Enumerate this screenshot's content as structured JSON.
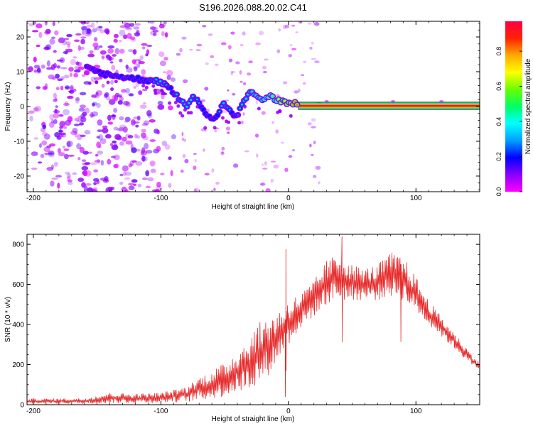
{
  "title": "S196.2026.088.20.02.C41",
  "colors": {
    "snr_line": "#e62a2a",
    "axis": "#000000",
    "colorbar_stops": [
      "#ff00ff",
      "#8800ff",
      "#0000ff",
      "#00a0ff",
      "#00ffff",
      "#00ff66",
      "#66ff00",
      "#ffff00",
      "#ffaa00",
      "#ff2200",
      "#ff0044"
    ]
  },
  "chart_data": [
    {
      "type": "heatmap",
      "name": "spectrogram",
      "title": "S196.2026.088.20.02.C41",
      "xlabel": "Height of straight line (km)",
      "ylabel": "Frequency (Hz)",
      "xlim": [
        -205,
        150
      ],
      "ylim": [
        -24.5,
        24.5
      ],
      "x_ticks": [
        -200,
        -100,
        0,
        100
      ],
      "y_ticks": [
        20,
        10,
        0,
        -10,
        -20
      ],
      "colorbar": {
        "label": "Normalized spectral amplitude",
        "range": [
          0,
          0.97
        ],
        "ticks": [
          0.0,
          0.2,
          0.4,
          0.6,
          0.8
        ]
      },
      "ridge": {
        "description": "dominant frequency track",
        "x": [
          -158,
          -150,
          -140,
          -130,
          -120,
          -110,
          -100,
          -95,
          -90,
          -85,
          -80,
          -75,
          -70,
          -65,
          -60,
          -55,
          -50,
          -45,
          -40,
          -35,
          -30,
          -25,
          -20,
          -15,
          -10,
          -5,
          0,
          10,
          20,
          40,
          80,
          150
        ],
        "y": [
          11,
          10,
          9,
          8.5,
          8,
          7.5,
          7,
          6,
          4,
          2,
          0,
          3,
          1,
          -2,
          -4,
          -2,
          1,
          -2,
          -3,
          2,
          4,
          3,
          2,
          3,
          2,
          1.5,
          1,
          0.5,
          0.3,
          0.2,
          0.2,
          0.2
        ],
        "amplitude": [
          0.2,
          0.25,
          0.25,
          0.3,
          0.3,
          0.3,
          0.35,
          0.3,
          0.3,
          0.35,
          0.35,
          0.35,
          0.3,
          0.3,
          0.3,
          0.3,
          0.35,
          0.3,
          0.3,
          0.35,
          0.4,
          0.45,
          0.5,
          0.55,
          0.6,
          0.7,
          0.75,
          0.85,
          0.9,
          0.9,
          0.9,
          0.9
        ]
      }
    },
    {
      "type": "line",
      "name": "snr",
      "xlabel": "Height of straight line (km)",
      "ylabel": "SNR (10 * v/v)",
      "xlim": [
        -205,
        150
      ],
      "ylim": [
        0,
        850
      ],
      "x_ticks": [
        -200,
        -100,
        0,
        100
      ],
      "y_ticks": [
        0,
        200,
        400,
        600,
        800
      ],
      "series": [
        {
          "name": "SNR envelope (upper)",
          "x": [
            -205,
            -160,
            -140,
            -120,
            -100,
            -80,
            -70,
            -60,
            -50,
            -40,
            -30,
            -25,
            -20,
            -15,
            -10,
            -5,
            0,
            10,
            20,
            30,
            40,
            50,
            60,
            70,
            80,
            90,
            100,
            110,
            120,
            130,
            140,
            150
          ],
          "values": [
            30,
            32,
            60,
            55,
            60,
            90,
            140,
            170,
            210,
            280,
            340,
            400,
            420,
            450,
            460,
            480,
            520,
            560,
            620,
            720,
            760,
            700,
            680,
            700,
            760,
            740,
            640,
            520,
            440,
            360,
            280,
            210
          ]
        },
        {
          "name": "SNR envelope (lower)",
          "x": [
            -205,
            -160,
            -140,
            -120,
            -100,
            -80,
            -70,
            -60,
            -50,
            -40,
            -30,
            -25,
            -20,
            -15,
            -10,
            -5,
            0,
            10,
            20,
            30,
            40,
            50,
            60,
            70,
            80,
            90,
            100,
            110,
            120,
            130,
            140,
            150
          ],
          "values": [
            5,
            5,
            8,
            8,
            10,
            15,
            20,
            30,
            40,
            60,
            80,
            100,
            120,
            150,
            200,
            260,
            300,
            380,
            440,
            500,
            520,
            520,
            520,
            520,
            540,
            520,
            460,
            400,
            340,
            280,
            220,
            160
          ]
        },
        {
          "name": "SNR spikes",
          "x": [
            -2,
            42,
            88
          ],
          "values": [
            775,
            840,
            700
          ]
        }
      ]
    }
  ]
}
